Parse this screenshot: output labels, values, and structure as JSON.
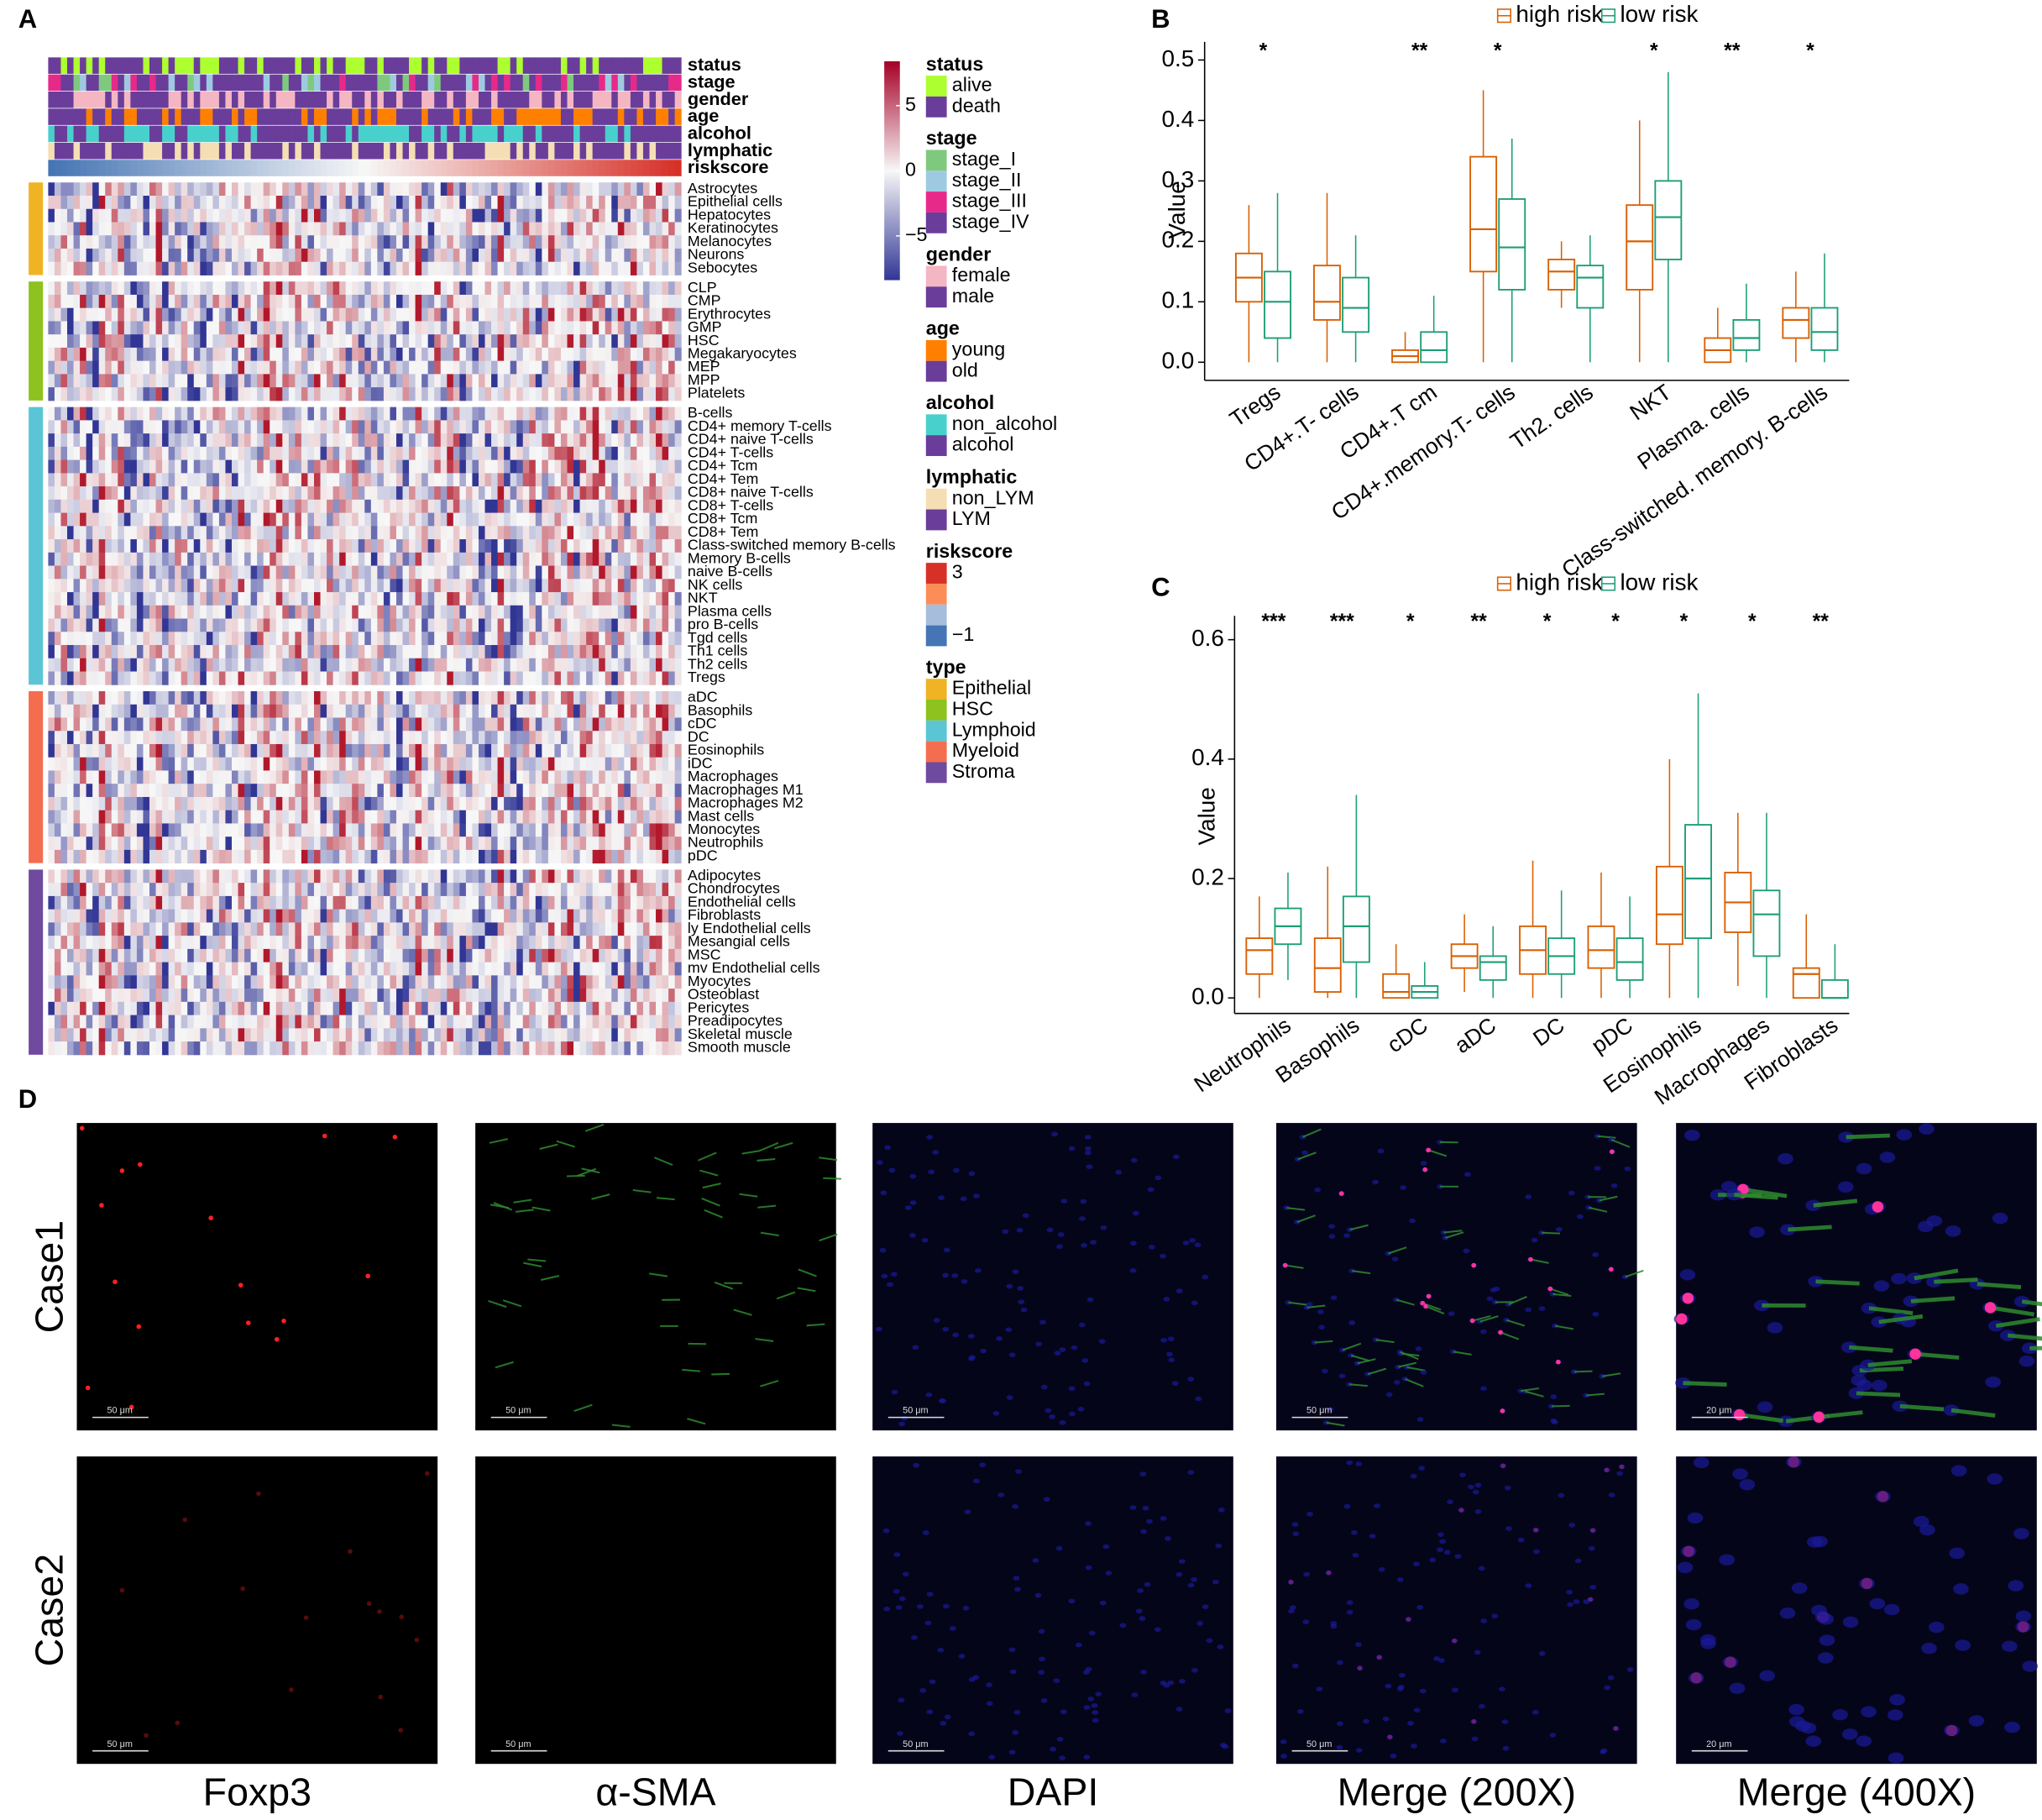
{
  "panel_labels": [
    "A",
    "B",
    "C",
    "D"
  ],
  "heatmap": {
    "legend": [
      {
        "title": "status",
        "items": [
          {
            "label": "alive",
            "color": "#adff2f"
          },
          {
            "label": "death",
            "color": "#6a3d9a"
          }
        ]
      },
      {
        "title": "stage",
        "items": [
          {
            "label": "stage_I",
            "color": "#7fc97f"
          },
          {
            "label": "stage_II",
            "color": "#9ecae1"
          },
          {
            "label": "stage_III",
            "color": "#e7298a"
          },
          {
            "label": "stage_IV",
            "color": "#6a3d9a"
          }
        ]
      },
      {
        "title": "gender",
        "items": [
          {
            "label": "female",
            "color": "#f4b6c2"
          },
          {
            "label": "male",
            "color": "#6a3d9a"
          }
        ]
      },
      {
        "title": "age",
        "items": [
          {
            "label": "young",
            "color": "#ff7f00"
          },
          {
            "label": "old",
            "color": "#6a3d9a"
          }
        ]
      },
      {
        "title": "alcohol",
        "items": [
          {
            "label": "non_alcohol",
            "color": "#48d1cc"
          },
          {
            "label": "alcohol",
            "color": "#6a3d9a"
          }
        ]
      },
      {
        "title": "lymphatic",
        "items": [
          {
            "label": "non_LYM",
            "color": "#f5deb3"
          },
          {
            "label": "LYM",
            "color": "#6a3d9a"
          }
        ]
      },
      {
        "title": "riskscore",
        "items": [
          {
            "label": "3",
            "color": "#d73027"
          },
          {
            "label": null,
            "color": "#fc8d59"
          },
          {
            "label": null,
            "color": "#a6bddb"
          },
          {
            "label": "−1",
            "color": "#4575b4"
          }
        ]
      },
      {
        "title": "type",
        "items": [
          {
            "label": "Epithelial",
            "color": "#f0b323"
          },
          {
            "label": "HSC",
            "color": "#8dc21f"
          },
          {
            "label": "Lymphoid",
            "color": "#5bc5d6"
          },
          {
            "label": "Myeloid",
            "color": "#f46d4f"
          },
          {
            "label": "Stroma",
            "color": "#6f4a9e"
          }
        ]
      }
    ],
    "color_scale_ticks": [
      5,
      0,
      {
        "value": -5,
        "label": "−5"
      }
    ],
    "groups": [
      {
        "rows": [
          "Astrocytes",
          "Epithelial cells",
          "Hepatocytes",
          "Keratinocytes",
          "Melanocytes",
          "Neurons",
          "Sebocytes"
        ]
      },
      {
        "rows": [
          "CLP",
          "CMP",
          "Erythrocytes",
          "GMP",
          "HSC",
          "Megakaryocytes",
          "MEP",
          "MPP",
          "Platelets"
        ]
      },
      {
        "rows": [
          "B-cells",
          "CD4+ memory T-cells",
          "CD4+ naive T-cells",
          "CD4+ T-cells",
          "CD4+ Tcm",
          "CD4+ Tem",
          "CD8+ naive T-cells",
          "CD8+ T-cells",
          "CD8+ Tcm",
          "CD8+ Tem",
          "Class-switched memory B-cells",
          "Memory B-cells",
          "naive B-cells",
          "NK cells",
          "NKT",
          "Plasma cells",
          "pro B-cells",
          "Tgd cells",
          "Th1 cells",
          "Th2 cells",
          "Tregs"
        ]
      },
      {
        "rows": [
          "aDC",
          "Basophils",
          "cDC",
          "DC",
          "Eosinophils",
          "iDC",
          "Macrophages",
          "Macrophages M1",
          "Macrophages M2",
          "Mast cells",
          "Monocytes",
          "Neutrophils",
          "pDC"
        ]
      },
      {
        "rows": [
          "Adipocytes",
          "Chondrocytes",
          "Endothelial cells",
          "Fibroblasts",
          "ly Endothelial cells",
          "Mesangial cells",
          "MSC",
          "mv Endothelial cells",
          "Myocytes",
          "Osteoblast",
          "Pericytes",
          "Preadipocytes",
          "Skeletal muscle",
          "Smooth muscle"
        ]
      }
    ]
  },
  "chart_data": [
    {
      "type": "box",
      "ylabel": "Value",
      "categories": [
        "Tregs",
        "CD4+.T- cells",
        "CD4+.T cm",
        "CD4+.memory.T- cells",
        "Th2. cells",
        "NKT",
        "Plasma. cells",
        "Class-switched. memory. B-cells"
      ],
      "significance": [
        "*",
        null,
        "**",
        "*",
        null,
        "*",
        "**",
        "*"
      ],
      "series": [
        {
          "name": "high risk",
          "color": "#d95f02",
          "min": [
            0,
            0,
            0,
            0,
            0.09,
            0,
            0,
            0
          ],
          "q1": [
            0.1,
            0.07,
            0,
            0.15,
            0.12,
            0.12,
            0,
            0.04
          ],
          "median": [
            0.14,
            0.1,
            0.01,
            0.22,
            0.15,
            0.2,
            0.02,
            0.07
          ],
          "q3": [
            0.18,
            0.16,
            0.02,
            0.34,
            0.17,
            0.26,
            0.04,
            0.09
          ],
          "max": [
            0.26,
            0.28,
            0.05,
            0.45,
            0.2,
            0.4,
            0.09,
            0.15
          ]
        },
        {
          "name": "low risk",
          "color": "#1b9e77",
          "min": [
            0,
            0,
            0,
            0,
            0,
            0,
            0,
            0
          ],
          "q1": [
            0.04,
            0.05,
            0,
            0.12,
            0.09,
            0.17,
            0.02,
            0.02
          ],
          "median": [
            0.1,
            0.09,
            0.02,
            0.19,
            0.14,
            0.24,
            0.04,
            0.05
          ],
          "q3": [
            0.15,
            0.14,
            0.05,
            0.27,
            0.16,
            0.3,
            0.07,
            0.09
          ],
          "max": [
            0.28,
            0.21,
            0.11,
            0.37,
            0.21,
            0.48,
            0.13,
            0.18
          ]
        }
      ],
      "ylim": [
        -0.03,
        0.53
      ],
      "yticks": [
        {
          "value": 0,
          "label": "0.0"
        },
        0.1,
        0.2,
        0.3,
        0.4,
        0.5
      ]
    },
    {
      "type": "box",
      "ylabel": "Value",
      "categories": [
        "Neutrophils",
        "Basophils",
        "cDC",
        "aDC",
        "DC",
        "pDC",
        "Eosinophils",
        "Macrophages",
        "Fibroblasts"
      ],
      "significance": [
        "***",
        "***",
        "*",
        "**",
        "*",
        "*",
        "*",
        "*",
        "**"
      ],
      "series": [
        {
          "name": "high risk",
          "color": "#d95f02",
          "min": [
            0,
            0,
            0,
            0.01,
            0,
            0,
            0,
            0.02,
            0
          ],
          "q1": [
            0.04,
            0.01,
            0,
            0.05,
            0.04,
            0.05,
            0.09,
            0.11,
            0
          ],
          "median": [
            0.08,
            0.05,
            0.01,
            0.07,
            0.08,
            0.08,
            0.14,
            0.16,
            0.04
          ],
          "q3": [
            0.1,
            0.1,
            0.04,
            0.09,
            0.12,
            0.12,
            0.22,
            0.21,
            0.05
          ],
          "max": [
            0.17,
            0.22,
            0.09,
            0.14,
            0.23,
            0.21,
            0.4,
            0.31,
            0.14
          ]
        },
        {
          "name": "low risk",
          "color": "#1b9e77",
          "min": [
            0.03,
            0,
            0,
            0,
            0,
            0,
            0,
            0,
            0
          ],
          "q1": [
            0.09,
            0.06,
            0,
            0.03,
            0.04,
            0.03,
            0.1,
            0.07,
            0
          ],
          "median": [
            0.12,
            0.12,
            0.01,
            0.06,
            0.07,
            0.06,
            0.2,
            0.14,
            0
          ],
          "q3": [
            0.15,
            0.17,
            0.02,
            0.07,
            0.1,
            0.1,
            0.29,
            0.18,
            0.03
          ],
          "max": [
            0.21,
            0.34,
            0.06,
            0.12,
            0.18,
            0.17,
            0.51,
            0.31,
            0.09
          ]
        }
      ],
      "ylim": [
        -0.026,
        0.64
      ],
      "yticks": [
        {
          "value": 0,
          "label": "0.0"
        },
        0.2,
        0.4,
        0.6
      ]
    }
  ],
  "images": {
    "rows": [
      "Case1",
      "Case2"
    ],
    "columns": [
      "Foxp3",
      "α-SMA",
      "DAPI",
      "Merge (200X)",
      "Merge (400X)"
    ],
    "scale_bars": [
      [
        "50 μm",
        "50 μm",
        "50 μm",
        "50 μm",
        "20 μm"
      ],
      [
        "50 μm",
        "50 μm",
        "50 μm",
        "50 μm",
        "20 μm"
      ]
    ]
  }
}
